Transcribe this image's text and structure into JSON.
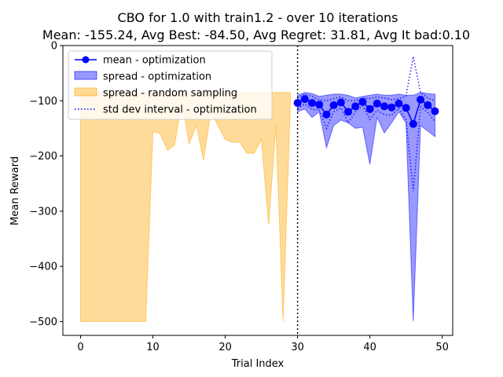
{
  "chart_data": {
    "type": "area",
    "title": "CBO for 1.0 with train1.2 - over 10 iterations",
    "subtitle": "Mean: -155.24, Avg Best: -84.50, Avg Regret: 31.81, Avg It bad:0.10",
    "xlabel": "Trial Index",
    "ylabel": "Mean Reward",
    "xlim": [
      -2.45,
      51.45
    ],
    "ylim": [
      -525,
      0
    ],
    "xticks": [
      0,
      10,
      20,
      30,
      40,
      50
    ],
    "yticks": [
      0,
      -100,
      -200,
      -300,
      -400,
      -500
    ],
    "grid": false,
    "legend_position": "top-left",
    "vline_x": 30,
    "colors": {
      "mean": "#0000ff",
      "spread_opt": "#0000ff",
      "random": "#ffa500",
      "std": "#0000ff",
      "vline": "#000000"
    },
    "random_spread": {
      "x": [
        0,
        1,
        2,
        3,
        4,
        5,
        6,
        7,
        8,
        9,
        10,
        11,
        12,
        13,
        14,
        15,
        16,
        17,
        18,
        19,
        20,
        21,
        22,
        23,
        24,
        25,
        26,
        27,
        28,
        29
      ],
      "upper": [
        -85,
        -85,
        -85,
        -85,
        -85,
        -85,
        -85,
        -85,
        -85,
        -85,
        -85,
        -85,
        -85,
        -85,
        -85,
        -85,
        -85,
        -85,
        -85,
        -85,
        -85,
        -85,
        -85,
        -85,
        -85,
        -85,
        -85,
        -85,
        -85,
        -85
      ],
      "lower": [
        -500,
        -500,
        -500,
        -500,
        -500,
        -500,
        -500,
        -500,
        -500,
        -500,
        -155,
        -160,
        -190,
        -180,
        -100,
        -178,
        -145,
        -208,
        -120,
        -145,
        -170,
        -175,
        -175,
        -195,
        -195,
        -170,
        -325,
        -145,
        -500,
        -105
      ]
    },
    "opt_spread": {
      "x": [
        30,
        31,
        32,
        33,
        34,
        35,
        36,
        37,
        38,
        39,
        40,
        41,
        42,
        43,
        44,
        45,
        46,
        47,
        48,
        49
      ],
      "upper": [
        -90,
        -85,
        -87,
        -92,
        -90,
        -88,
        -88,
        -90,
        -95,
        -92,
        -90,
        -88,
        -90,
        -90,
        -88,
        -90,
        -90,
        -85,
        -87,
        -88
      ],
      "lower": [
        -120,
        -115,
        -130,
        -120,
        -185,
        -145,
        -135,
        -140,
        -150,
        -148,
        -215,
        -130,
        -158,
        -140,
        -120,
        -140,
        -500,
        -145,
        -155,
        -165
      ]
    },
    "mean_series": {
      "name": "mean - optimization",
      "x": [
        30,
        31,
        32,
        33,
        34,
        35,
        36,
        37,
        38,
        39,
        40,
        41,
        42,
        43,
        44,
        45,
        46,
        47,
        48,
        49
      ],
      "y": [
        -104,
        -97,
        -104,
        -107,
        -125,
        -108,
        -103,
        -120,
        -110,
        -102,
        -115,
        -105,
        -110,
        -112,
        -105,
        -113,
        -142,
        -98,
        -108,
        -119
      ]
    },
    "std_series": {
      "name": "std dev interval - optimization",
      "x": [
        30,
        31,
        32,
        33,
        34,
        35,
        36,
        37,
        38,
        39,
        40,
        41,
        42,
        43,
        44,
        45,
        46,
        47,
        48,
        49
      ],
      "upper": [
        -94,
        -88,
        -92,
        -98,
        -100,
        -96,
        -93,
        -100,
        -100,
        -95,
        -96,
        -93,
        -95,
        -98,
        -96,
        -92,
        -20,
        -85,
        -95,
        -100
      ],
      "lower": [
        -114,
        -106,
        -116,
        -116,
        -150,
        -120,
        -113,
        -140,
        -120,
        -109,
        -134,
        -117,
        -125,
        -126,
        -114,
        -134,
        -264,
        -111,
        -121,
        -138
      ]
    },
    "legend": [
      {
        "label": "mean - optimization",
        "kind": "line-marker",
        "color": "#0000ff"
      },
      {
        "label": "spread - optimization",
        "kind": "patch",
        "color": "#0000ff"
      },
      {
        "label": "spread - random sampling",
        "kind": "patch",
        "color": "#ffa500"
      },
      {
        "label": "std dev interval - optimization",
        "kind": "dotted",
        "color": "#0000ff"
      }
    ]
  }
}
